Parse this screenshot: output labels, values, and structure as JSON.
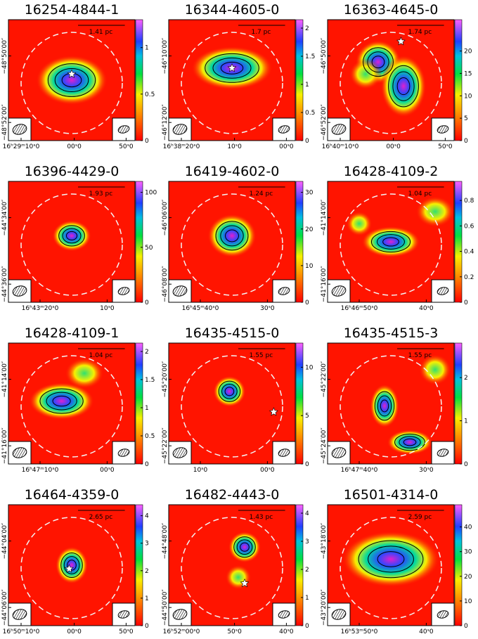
{
  "panels": [
    {
      "title": "16254-4844-1",
      "scale": "1.41 pc",
      "x_ticks": [
        "16ʰ29ᵐ10ˢ0",
        "00ˢ0",
        "50ˢ0"
      ],
      "y_ticks": [
        "−48°50′00″",
        "−48°52′00″"
      ],
      "colorbar": {
        "max": 1.3,
        "ticks": [
          0,
          0.5,
          1
        ]
      }
    },
    {
      "title": "16344-4605-0",
      "scale": "1.7 pc",
      "x_ticks": [
        "16ʰ38ᵐ20ˢ0",
        "10ˢ0",
        "00ˢ0"
      ],
      "y_ticks": [
        "−46°10′00″",
        "−46°12′00″"
      ],
      "colorbar": {
        "max": 2.15,
        "ticks": [
          0,
          0.5,
          1,
          1.5,
          2
        ]
      }
    },
    {
      "title": "16363-4645-0",
      "scale": "1.74 pc",
      "x_ticks": [
        "16ʰ40ᵐ10ˢ0",
        "00ˢ0",
        "50ˢ0"
      ],
      "y_ticks": [
        "−46°50′00″",
        "−46°52′00″"
      ],
      "colorbar": {
        "max": 27,
        "ticks": [
          0,
          5,
          10,
          15,
          20
        ]
      }
    },
    {
      "title": "16396-4429-0",
      "scale": "1.93 pc",
      "x_ticks": [
        "16ʰ43ᵐ20ˢ0",
        "10ˢ0"
      ],
      "y_ticks": [
        "−44°34′00″",
        "−44°36′00″"
      ],
      "colorbar": {
        "max": 110,
        "ticks": [
          0,
          50,
          100
        ]
      }
    },
    {
      "title": "16419-4602-0",
      "scale": "1.24 pc",
      "x_ticks": [
        "16ʰ45ᵐ40ˢ0",
        "30ˢ0"
      ],
      "y_ticks": [
        "−46°06′00″",
        "−46°08′00″"
      ],
      "colorbar": {
        "max": 33,
        "ticks": [
          0,
          10,
          20,
          30
        ]
      }
    },
    {
      "title": "16428-4109-2",
      "scale": "1.04 pc",
      "x_ticks": [
        "16ʰ46ᵐ50ˢ0",
        "40ˢ0"
      ],
      "y_ticks": [
        "−41°14′00″",
        "−41°16′00″"
      ],
      "colorbar": {
        "max": 0.95,
        "ticks": [
          0,
          0.2,
          0.4,
          0.6,
          0.8
        ]
      }
    },
    {
      "title": "16428-4109-1",
      "scale": "1.04 pc",
      "x_ticks": [
        "16ʰ47ᵐ10ˢ0",
        "00ˢ0"
      ],
      "y_ticks": [
        "−41°14′00″",
        "−41°16′00″"
      ],
      "colorbar": {
        "max": 2.15,
        "ticks": [
          0,
          0.5,
          1,
          1.5,
          2
        ]
      }
    },
    {
      "title": "16435-4515-0",
      "scale": "1.55 pc",
      "x_ticks": [
        "10ˢ0",
        "00ˢ0"
      ],
      "y_ticks": [
        "−45°20′00″",
        "−45°22′00″"
      ],
      "colorbar": {
        "max": 12.5,
        "ticks": [
          0,
          5,
          10
        ]
      }
    },
    {
      "title": "16435-4515-3",
      "scale": "1.55 pc",
      "x_ticks": [
        "16ʰ47ᵐ40ˢ0",
        "30ˢ0"
      ],
      "y_ticks": [
        "−45°22′00″",
        "−45°24′00″"
      ],
      "colorbar": {
        "max": 2.8,
        "ticks": [
          0,
          1,
          2
        ]
      }
    },
    {
      "title": "16464-4359-0",
      "scale": "2.65 pc",
      "x_ticks": [
        "16ʰ50ᵐ10ˢ0",
        "00ˢ0",
        "50ˢ0"
      ],
      "y_ticks": [
        "−44°04′00″",
        "−44°06′00″"
      ],
      "colorbar": {
        "max": 4.4,
        "ticks": [
          0,
          1,
          2,
          3,
          4
        ]
      }
    },
    {
      "title": "16482-4443-0",
      "scale": "1.43 pc",
      "x_ticks": [
        "16ʰ52ᵐ00ˢ0",
        "50ˢ0",
        "40ˢ0"
      ],
      "y_ticks": [
        "−44°48′00″",
        "−44°50′00″"
      ],
      "colorbar": {
        "max": 4.3,
        "ticks": [
          0,
          1,
          2,
          3,
          4
        ]
      }
    },
    {
      "title": "16501-4314-0",
      "scale": "2.59 pc",
      "x_ticks": [
        "16ʰ53ᵐ50ˢ0",
        "40ˢ0"
      ],
      "y_ticks": [
        "−43°18′00″",
        "−43°20′00″"
      ],
      "colorbar": {
        "max": 49,
        "ticks": [
          0,
          10,
          20,
          30,
          40
        ]
      }
    }
  ]
}
